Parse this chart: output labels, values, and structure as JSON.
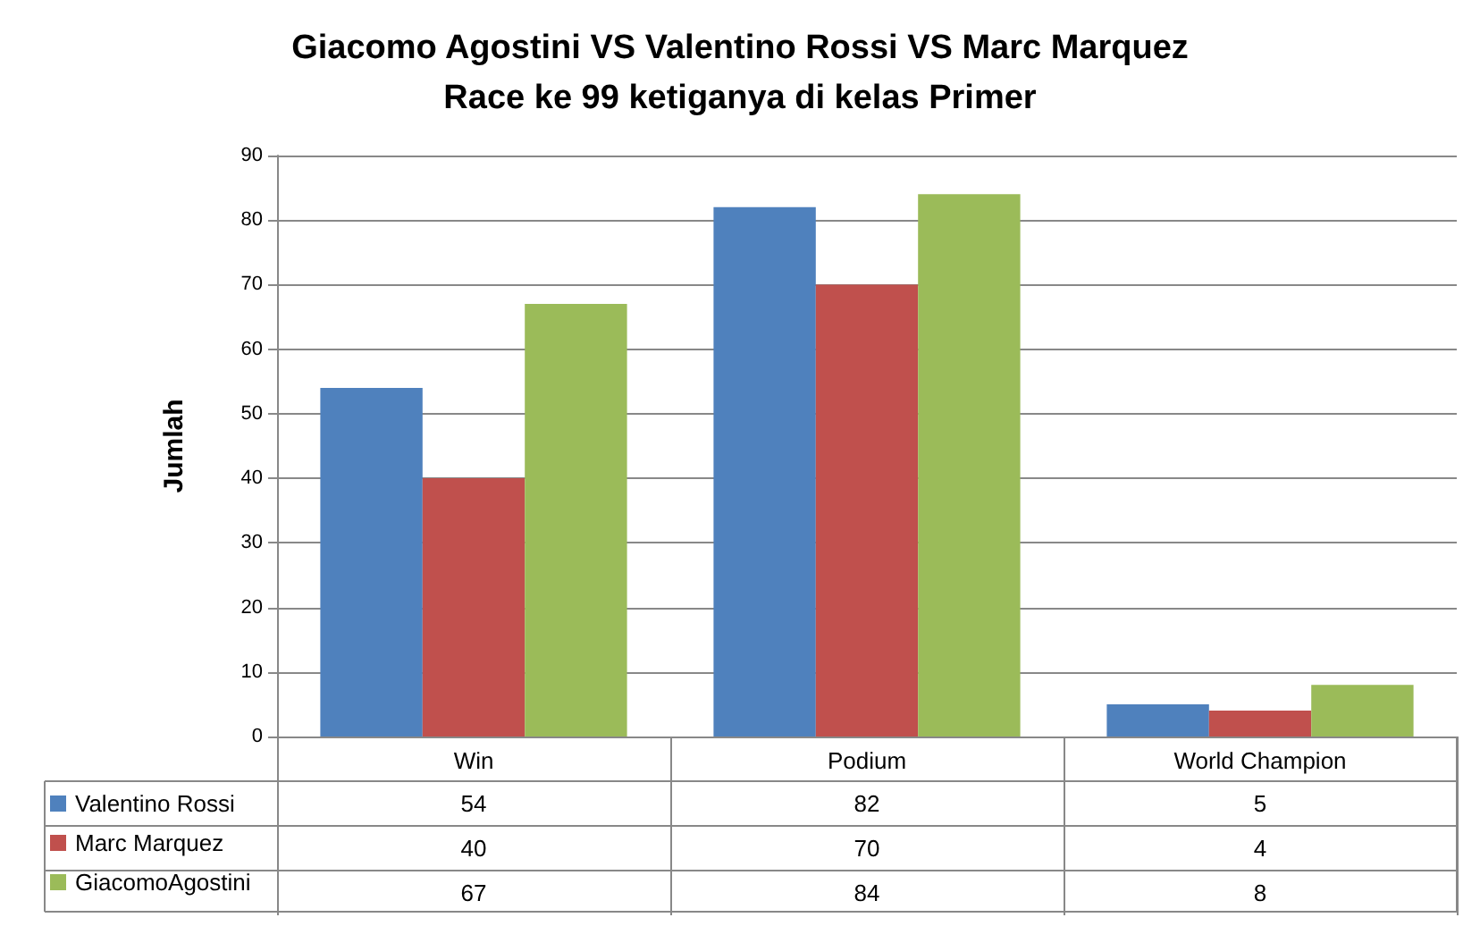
{
  "chart_data": {
    "type": "bar",
    "title": "Giacomo Agostini VS Valentino Rossi VS Marc Marquez\nRace ke 99 ketiganya di kelas Primer",
    "ylabel": "Jumlah",
    "categories": [
      "Win",
      "Podium",
      "World Champion"
    ],
    "series": [
      {
        "name": "Valentino Rossi",
        "color": "#4f81bd",
        "values": [
          54,
          82,
          5
        ]
      },
      {
        "name": "Marc Marquez",
        "color": "#c0504d",
        "values": [
          40,
          70,
          4
        ]
      },
      {
        "name": "GiacomoAgostini",
        "color": "#9bbb59",
        "values": [
          67,
          84,
          8
        ]
      }
    ],
    "ylim": [
      0,
      90
    ],
    "yticks": [
      0,
      10,
      20,
      30,
      40,
      50,
      60,
      70,
      80,
      90
    ],
    "grid": "y",
    "legend": "bottom left",
    "data_labels": true
  }
}
